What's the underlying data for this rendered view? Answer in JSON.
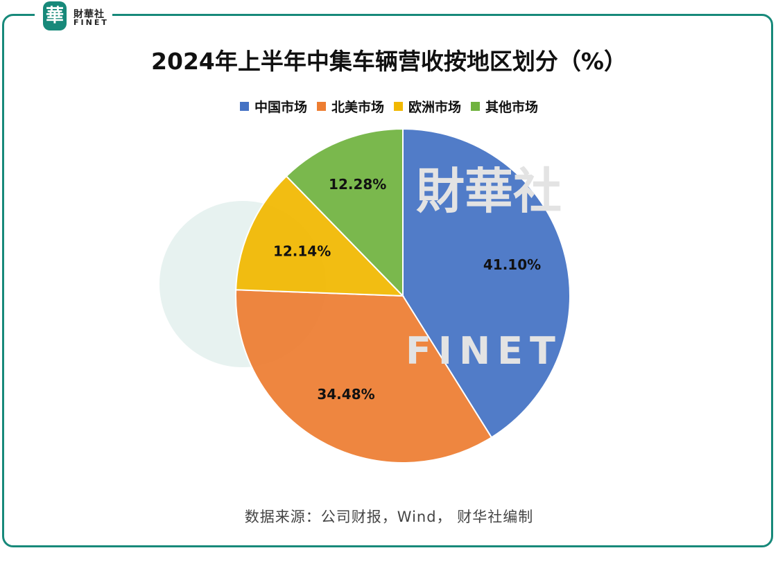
{
  "logo": {
    "cn": "財華社",
    "en": "FINET",
    "mark": "華"
  },
  "watermark": {
    "cn": "財華社",
    "en": "FINET",
    "mark": "華"
  },
  "chart_data": {
    "type": "pie",
    "title": "2024年上半年中集车辆营收按地区划分（%）",
    "categories": [
      "中国市场",
      "北美市场",
      "欧洲市场",
      "其他市场"
    ],
    "values": [
      41.1,
      34.48,
      12.14,
      12.28
    ],
    "labels": [
      "41.10%",
      "34.48%",
      "12.14%",
      "12.28%"
    ],
    "colors": [
      "#4472c4",
      "#ed7d31",
      "#f1b800",
      "#70b33f"
    ],
    "start": "top",
    "direction": "clockwise",
    "legend": "top"
  },
  "source": "数据来源：公司财报，Wind， 财华社编制",
  "frame_color": "#17897a"
}
